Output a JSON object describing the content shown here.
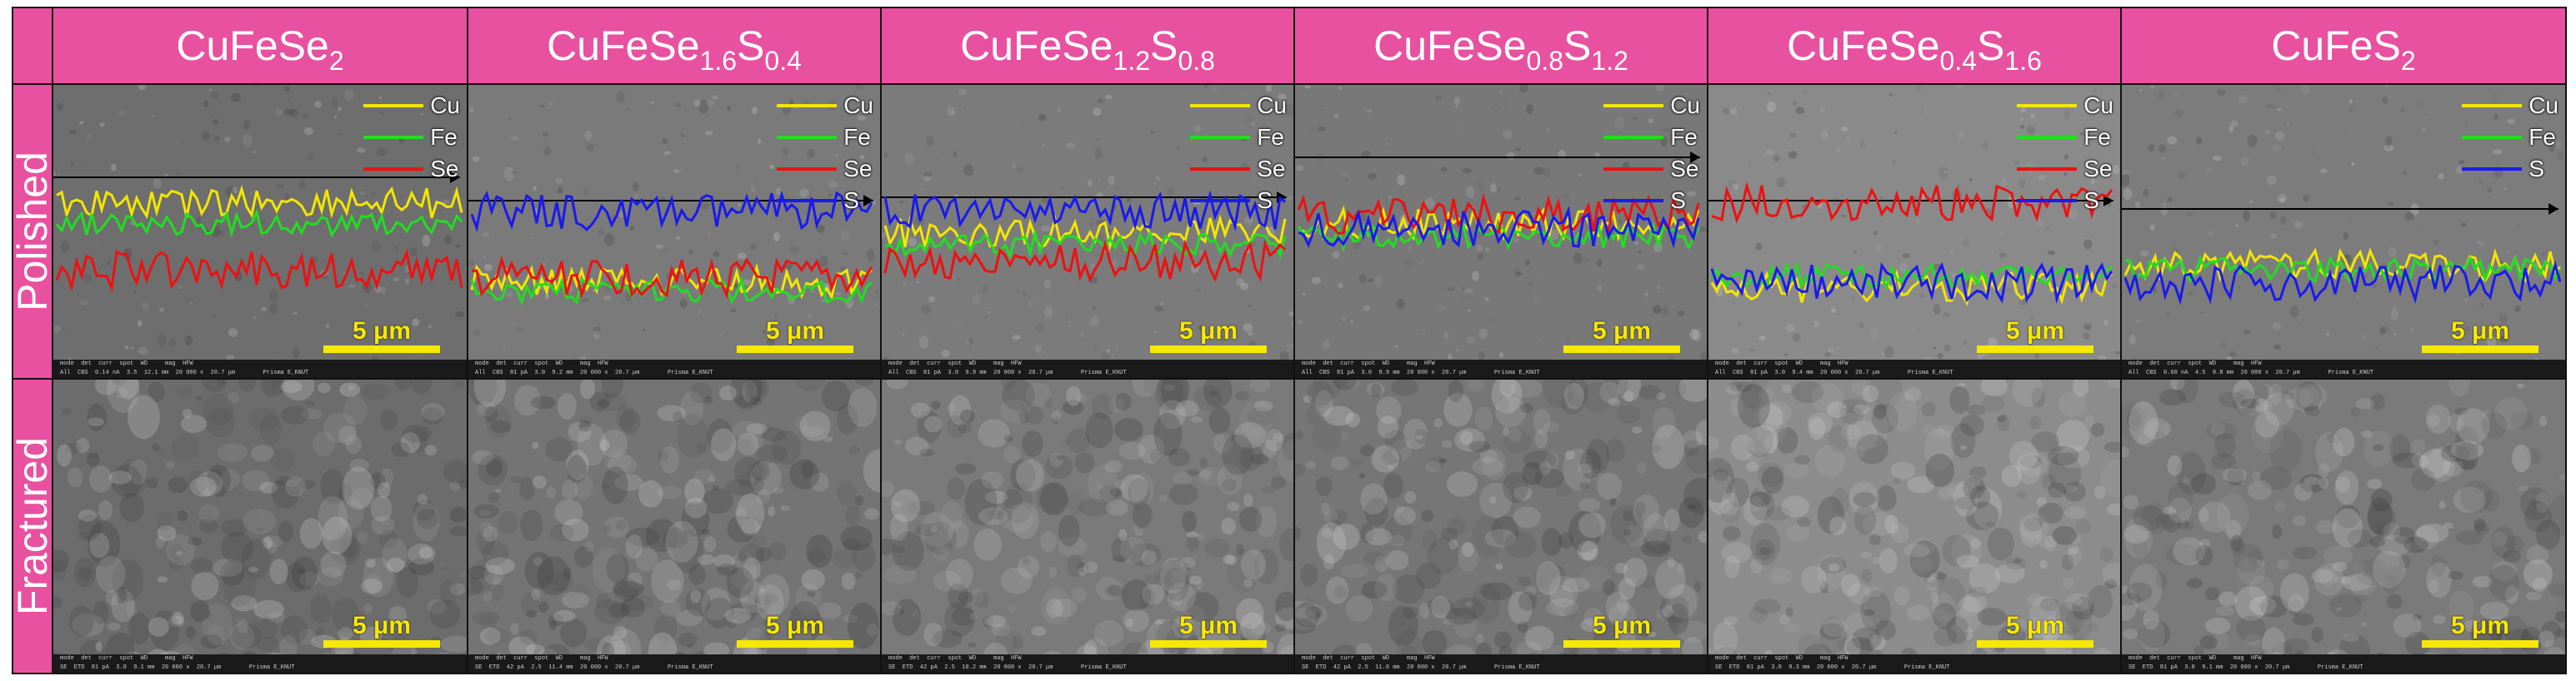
{
  "columns": [
    {
      "base": "CuFeSe",
      "parts": [
        {
          "sub": "2"
        }
      ]
    },
    {
      "base": "CuFeSe",
      "parts": [
        {
          "sub": "1.6"
        },
        {
          "txt": "S"
        },
        {
          "sub": "0.4"
        }
      ]
    },
    {
      "base": "CuFeSe",
      "parts": [
        {
          "sub": "1.2"
        },
        {
          "txt": "S"
        },
        {
          "sub": "0.8"
        }
      ]
    },
    {
      "base": "CuFeSe",
      "parts": [
        {
          "sub": "0.8"
        },
        {
          "txt": "S"
        },
        {
          "sub": "1.2"
        }
      ]
    },
    {
      "base": "CuFeSe",
      "parts": [
        {
          "sub": "0.4"
        },
        {
          "txt": "S"
        },
        {
          "sub": "1.6"
        }
      ]
    },
    {
      "base": "CuFeS",
      "parts": [
        {
          "sub": "2"
        }
      ]
    }
  ],
  "rows": [
    "Polished",
    "Fractured"
  ],
  "scale_bar": "5 μm",
  "legends": [
    [
      "Cu",
      "Fe",
      "Se"
    ],
    [
      "Cu",
      "Fe",
      "Se",
      "S"
    ],
    [
      "Cu",
      "Fe",
      "Se",
      "S"
    ],
    [
      "Cu",
      "Fe",
      "Se",
      "S"
    ],
    [
      "Cu",
      "Fe",
      "Se",
      "S"
    ],
    [
      "Cu",
      "Fe",
      "S"
    ]
  ],
  "element_colors": {
    "Cu": "#f2e600",
    "Fe": "#22dd22",
    "Se": "#ee1111",
    "S": "#1a1aee"
  },
  "header_color": "#e8519f",
  "sem_footer": {
    "polished": [
      "mode  det  curr  spot  WD     mag  HFW\nAll  CBS  0.14 nA  3.5  12.1 mm  20 000 x  20.7 μm        Prisma E_KNUT",
      "mode  det  curr  spot  WD     mag  HFW\nAll  CBS  81 pA  3.0  9.2 mm  20 000 x  20.7 μm        Prisma E_KNUT",
      "mode  det  curr  spot  WD     mag  HFW\nAll  CBS  81 pA  3.0  9.9 mm  20 000 x  20.7 μm        Prisma E_KNUT",
      "mode  det  curr  spot  WD     mag  HFW\nAll  CBS  81 pA  3.0  9.9 mm  20 000 x  20.7 μm        Prisma E_KNUT",
      "mode  det  curr  spot  WD     mag  HFW\nAll  CBS  81 pA  3.0  9.4 mm  20 000 x  20.7 μm        Prisma E_KNUT",
      "mode  det  curr  spot  WD     mag  HFW\nAll  CBS  0.60 nA  4.5  8.8 mm  20 000 x  20.7 μm        Prisma E_KNUT"
    ],
    "fractured": [
      "mode  det  curr  spot  WD     mag  HFW\nSE  ETD  81 pA  3.0  9.1 mm  20 000 x  20.7 μm        Prisma E_KNUT",
      "mode  det  curr  spot  WD     mag  HFW\nSE  ETD  42 pA  2.5  11.4 mm  20 000 x  20.7 μm        Prisma E_KNUT",
      "mode  det  curr  spot  WD     mag  HFW\nSE  ETD  42 pA  2.5  10.2 mm  20 000 x  20.7 μm        Prisma E_KNUT",
      "mode  det  curr  spot  WD     mag  HFW\nSE  ETD  42 pA  2.5  11.6 mm  20 000 x  20.7 μm        Prisma E_KNUT",
      "mode  det  curr  spot  WD     mag  HFW\nSE  ETD  81 pA  3.0  9.3 mm  20 000 x  20.7 μm        Prisma E_KNUT",
      "mode  det  curr  spot  WD     mag  HFW\nSE  ETD  81 pA  3.0  9.1 mm  20 000 x  20.7 μm        Prisma E_KNUT"
    ]
  },
  "sem_tones": {
    "polished": [
      "#6e6e6e",
      "#7a7a7a",
      "#7b7b7b",
      "#787878",
      "#8a8a8a",
      "#7c7c7c"
    ],
    "fractured": [
      "#6c6c6c",
      "#747474",
      "#7a7a7a",
      "#767676",
      "#8c8c8c",
      "#7a7a7a"
    ]
  }
}
